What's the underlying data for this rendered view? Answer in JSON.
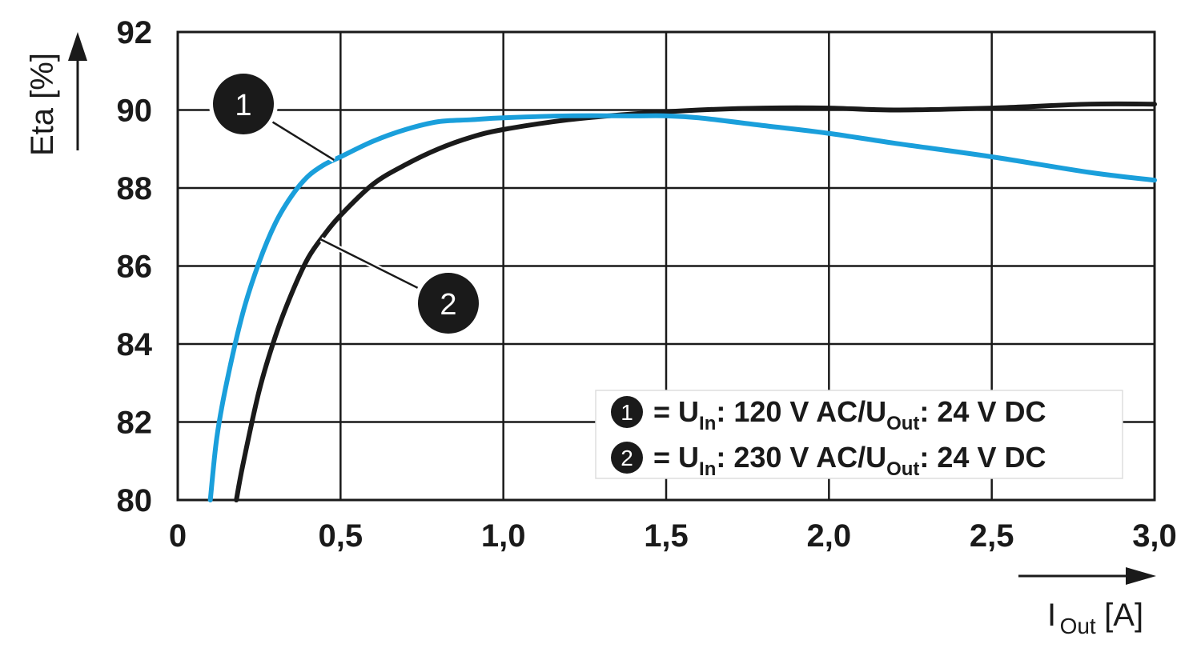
{
  "chart_data": {
    "type": "line",
    "y_axis": {
      "label": "Eta [%]",
      "min": 80,
      "max": 92,
      "ticks": [
        "80",
        "82",
        "84",
        "86",
        "88",
        "90",
        "92"
      ]
    },
    "x_axis": {
      "label_main": "I",
      "label_sub": "Out",
      "label_unit": "[A]",
      "min": 0,
      "max": 3.0,
      "ticks": [
        "0",
        "0,5",
        "1,0",
        "1,5",
        "2,0",
        "2,5",
        "3,0"
      ]
    },
    "grid": true,
    "legend_position": "bottom-right",
    "series": [
      {
        "marker": "1",
        "color": "#1a9fdb",
        "legend": {
          "prefix": "= U",
          "sub1": "In",
          "mid": ": 120 V AC/U",
          "sub2": "Out",
          "suffix": ": 24 V DC"
        },
        "x": [
          0.1,
          0.12,
          0.15,
          0.2,
          0.25,
          0.3,
          0.35,
          0.4,
          0.45,
          0.5,
          0.6,
          0.7,
          0.8,
          0.9,
          1.0,
          1.2,
          1.4,
          1.5,
          1.6,
          1.8,
          2.0,
          2.2,
          2.5,
          2.8,
          3.0
        ],
        "y": [
          80.0,
          81.6,
          83.0,
          84.8,
          86.1,
          87.1,
          87.8,
          88.3,
          88.6,
          88.8,
          89.2,
          89.5,
          89.7,
          89.75,
          89.8,
          89.85,
          89.85,
          89.85,
          89.8,
          89.6,
          89.4,
          89.15,
          88.8,
          88.4,
          88.2
        ]
      },
      {
        "marker": "2",
        "color": "#1a1a1a",
        "legend": {
          "prefix": "= U",
          "sub1": "In",
          "mid": ": 230 V AC/U",
          "sub2": "Out",
          "suffix": ": 24 V DC"
        },
        "x": [
          0.18,
          0.2,
          0.25,
          0.3,
          0.35,
          0.4,
          0.45,
          0.5,
          0.6,
          0.7,
          0.8,
          0.9,
          1.0,
          1.2,
          1.4,
          1.6,
          1.8,
          2.0,
          2.2,
          2.5,
          2.8,
          3.0
        ],
        "y": [
          80.0,
          80.9,
          82.8,
          84.2,
          85.3,
          86.2,
          86.8,
          87.3,
          88.1,
          88.6,
          89.0,
          89.3,
          89.5,
          89.75,
          89.9,
          90.0,
          90.05,
          90.05,
          90.0,
          90.05,
          90.15,
          90.15
        ]
      }
    ],
    "callouts": [
      {
        "marker": "1",
        "series": 0,
        "x": 0.48
      },
      {
        "marker": "2",
        "series": 1,
        "x": 0.44
      }
    ]
  }
}
